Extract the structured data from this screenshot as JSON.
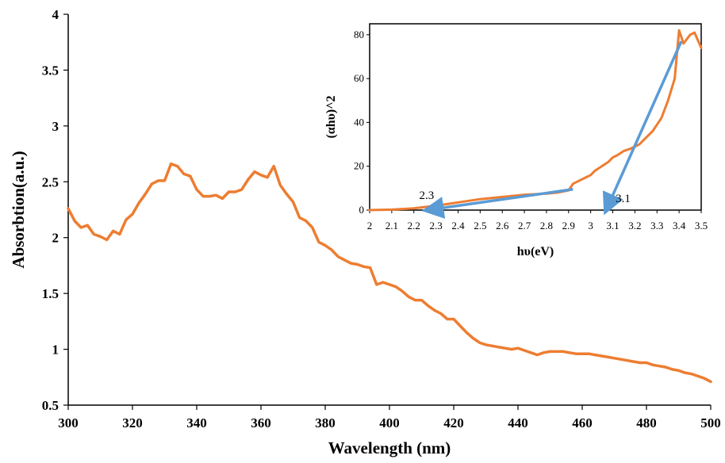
{
  "chart_data": [
    {
      "type": "line",
      "title": "",
      "xlabel": "Wavelength (nm)",
      "ylabel": "Absorbtion(a.u.)",
      "xlim": [
        300,
        500
      ],
      "ylim": [
        0.5,
        4
      ],
      "xticks": [
        300,
        320,
        340,
        360,
        380,
        400,
        420,
        440,
        460,
        480,
        500
      ],
      "yticks": [
        0.5,
        1,
        1.5,
        2,
        2.5,
        3,
        3.5,
        4
      ],
      "ytick_labels": [
        "0.5",
        "1",
        "1.5",
        "2",
        "2.5",
        "3",
        "3.5",
        "4"
      ],
      "grid": false,
      "legend": "none",
      "series": [
        {
          "color": "#ED7D31",
          "x": [
            300,
            302,
            304,
            306,
            308,
            310,
            312,
            314,
            316,
            318,
            320,
            322,
            324,
            326,
            328,
            330,
            332,
            334,
            336,
            338,
            340,
            342,
            344,
            346,
            348,
            350,
            352,
            354,
            356,
            358,
            360,
            362,
            364,
            366,
            368,
            370,
            372,
            374,
            376,
            378,
            380,
            382,
            384,
            386,
            388,
            390,
            392,
            394,
            396,
            398,
            400,
            402,
            404,
            406,
            408,
            410,
            412,
            414,
            416,
            418,
            420,
            422,
            424,
            426,
            428,
            430,
            432,
            434,
            436,
            438,
            440,
            442,
            444,
            446,
            448,
            450,
            452,
            454,
            456,
            458,
            460,
            462,
            464,
            466,
            468,
            470,
            472,
            474,
            476,
            478,
            480,
            482,
            484,
            486,
            488,
            490,
            492,
            494,
            496,
            498,
            500
          ],
          "y": [
            2.26,
            2.15,
            2.09,
            2.11,
            2.03,
            2.01,
            1.98,
            2.06,
            2.03,
            2.16,
            2.21,
            2.31,
            2.39,
            2.48,
            2.51,
            2.51,
            2.66,
            2.64,
            2.57,
            2.55,
            2.43,
            2.37,
            2.37,
            2.38,
            2.35,
            2.41,
            2.41,
            2.43,
            2.52,
            2.59,
            2.56,
            2.54,
            2.64,
            2.47,
            2.39,
            2.32,
            2.18,
            2.15,
            2.09,
            1.96,
            1.93,
            1.89,
            1.83,
            1.8,
            1.77,
            1.76,
            1.74,
            1.73,
            1.58,
            1.6,
            1.58,
            1.56,
            1.52,
            1.47,
            1.44,
            1.44,
            1.39,
            1.35,
            1.32,
            1.27,
            1.27,
            1.21,
            1.15,
            1.1,
            1.06,
            1.04,
            1.03,
            1.02,
            1.01,
            1.0,
            1.01,
            0.99,
            0.97,
            0.95,
            0.97,
            0.98,
            0.98,
            0.98,
            0.97,
            0.96,
            0.96,
            0.96,
            0.95,
            0.94,
            0.93,
            0.92,
            0.91,
            0.9,
            0.89,
            0.88,
            0.88,
            0.86,
            0.85,
            0.84,
            0.82,
            0.81,
            0.79,
            0.78,
            0.76,
            0.74,
            0.71
          ]
        }
      ]
    },
    {
      "type": "line",
      "title": "",
      "xlabel": "hυ(eV)",
      "ylabel": "(αhυ)^2",
      "xlim": [
        2,
        3.5
      ],
      "ylim": [
        0,
        85
      ],
      "xticks": [
        2,
        2.1,
        2.2,
        2.3,
        2.4,
        2.5,
        2.6,
        2.7,
        2.8,
        2.9,
        3,
        3.1,
        3.2,
        3.3,
        3.4,
        3.5
      ],
      "xtick_labels": [
        "2",
        "2.1",
        "2.2",
        "2.3",
        "2.4",
        "2.5",
        "2.6",
        "2.7",
        "2.8",
        "2.9",
        "3",
        "3.1",
        "3.2",
        "3.3",
        "3.4",
        "3.5"
      ],
      "yticks": [
        0,
        20,
        40,
        60,
        80
      ],
      "grid": false,
      "legend": "none",
      "series": [
        {
          "color": "#ED7D31",
          "x": [
            2.0,
            2.1,
            2.2,
            2.3,
            2.4,
            2.5,
            2.6,
            2.7,
            2.8,
            2.85,
            2.9,
            2.92,
            2.95,
            2.98,
            3.0,
            3.02,
            3.05,
            3.08,
            3.1,
            3.12,
            3.15,
            3.18,
            3.2,
            3.22,
            3.25,
            3.28,
            3.3,
            3.32,
            3.35,
            3.38,
            3.4,
            3.42,
            3.45,
            3.47,
            3.5
          ],
          "y": [
            0,
            0.2,
            0.8,
            2,
            3.5,
            5,
            6,
            7,
            7.5,
            8,
            9,
            12,
            13.5,
            15,
            16,
            18,
            20,
            22,
            24,
            25,
            27,
            28,
            29,
            30,
            33,
            36,
            39,
            42,
            50,
            60,
            82,
            76,
            80,
            81,
            74
          ]
        }
      ],
      "annotations": [
        {
          "label": "2.3",
          "color": "#5B9BD5",
          "from": [
            2.92,
            9.5
          ],
          "to": [
            2.26,
            0
          ]
        },
        {
          "label": "3.1",
          "color": "#5B9BD5",
          "from": [
            3.41,
            77
          ],
          "to": [
            3.07,
            0
          ]
        }
      ]
    }
  ]
}
